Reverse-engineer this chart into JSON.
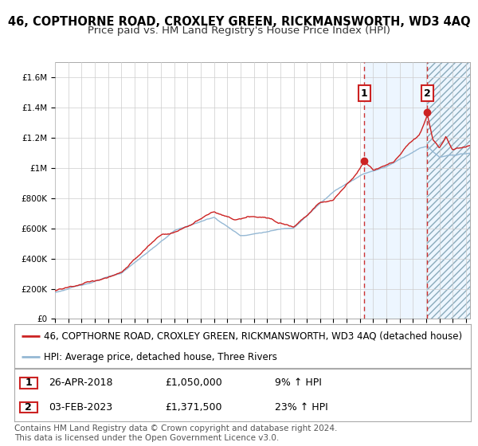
{
  "title": "46, COPTHORNE ROAD, CROXLEY GREEN, RICKMANSWORTH, WD3 4AQ",
  "subtitle": "Price paid vs. HM Land Registry's House Price Index (HPI)",
  "ylim": [
    0,
    1700000
  ],
  "yticks": [
    0,
    200000,
    400000,
    600000,
    800000,
    1000000,
    1200000,
    1400000,
    1600000
  ],
  "ytick_labels": [
    "£0",
    "£200K",
    "£400K",
    "£600K",
    "£800K",
    "£1M",
    "£1.2M",
    "£1.4M",
    "£1.6M"
  ],
  "xlim_start": 1995.0,
  "xlim_end": 2026.3,
  "year_start": 1995,
  "year_end": 2026,
  "marker1_year": 2018.32,
  "marker1_value": 1050000,
  "marker1_date": "26-APR-2018",
  "marker1_price": "£1,050,000",
  "marker1_pct": "9% ↑ HPI",
  "marker2_year": 2023.09,
  "marker2_value": 1371500,
  "marker2_date": "03-FEB-2023",
  "marker2_price": "£1,371,500",
  "marker2_pct": "23% ↑ HPI",
  "hpi_line_color": "#95b8d4",
  "price_line_color": "#cc2222",
  "vline1_color": "#cc3333",
  "vline2_color": "#cc3333",
  "grid_color": "#cccccc",
  "bg_color": "#ffffff",
  "fill_color": "#ddeeff",
  "hatch_color": "#b0c8e0",
  "legend_label_red": "46, COPTHORNE ROAD, CROXLEY GREEN, RICKMANSWORTH, WD3 4AQ (detached house)",
  "legend_label_blue": "HPI: Average price, detached house, Three Rivers",
  "footer_text": "Contains HM Land Registry data © Crown copyright and database right 2024.\nThis data is licensed under the Open Government Licence v3.0.",
  "title_fontsize": 10.5,
  "subtitle_fontsize": 9.5,
  "tick_fontsize": 7.5,
  "legend_fontsize": 8.5,
  "table_fontsize": 9,
  "footer_fontsize": 7.5
}
